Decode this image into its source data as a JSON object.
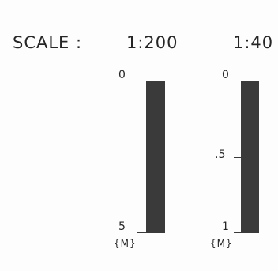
{
  "header": {
    "scale_label": "SCALE :",
    "ratio_a": "1:200",
    "ratio_b": "1:40"
  },
  "scale_bars": [
    {
      "ratio": "1:200",
      "top_label": "0",
      "bottom_label": "5",
      "unit": "{M}"
    },
    {
      "ratio": "1:40",
      "top_label": "0",
      "mid_label": ".5",
      "bottom_label": "1",
      "unit": "{M}"
    }
  ],
  "colors": {
    "bar": "#3a3a3a",
    "text": "#262626",
    "background": "#ffffff"
  }
}
